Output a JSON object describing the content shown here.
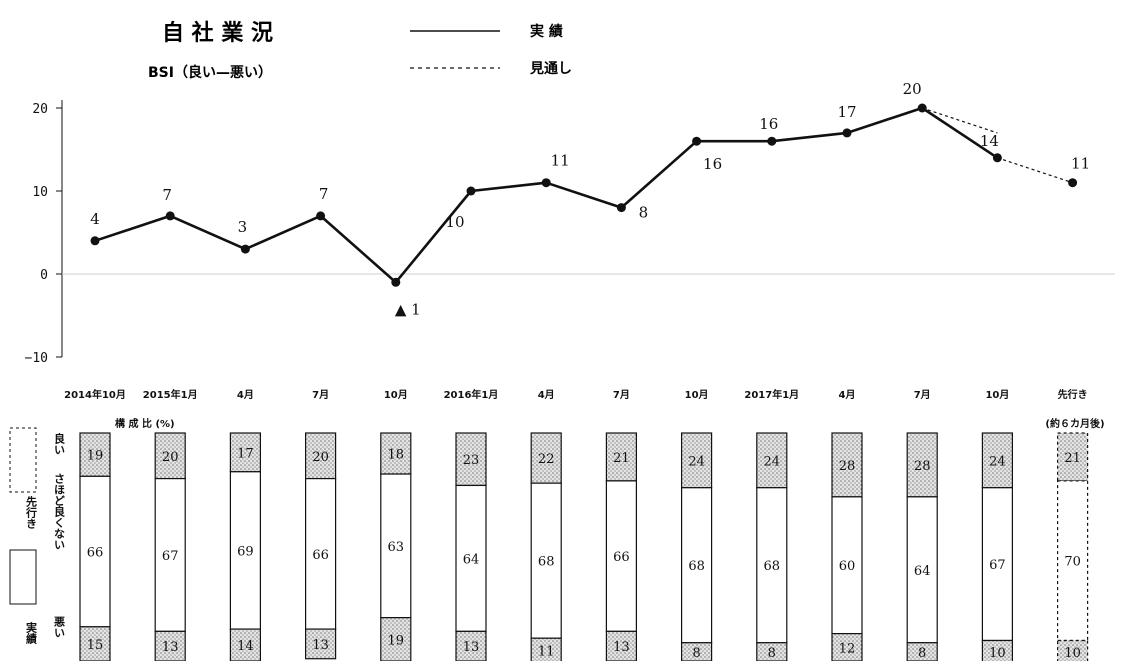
{
  "title": "自 社 業 況",
  "subtitle": "BSI（良い—悪い）",
  "legend": {
    "actual": "実 績",
    "forecast": "見通し"
  },
  "composition_label": "構 成 比 (%)",
  "forecast_note": "(約６カ月後)",
  "side_labels": {
    "good": "良い",
    "neutral": "さほど良くない",
    "bad": "悪い",
    "forecast": "先行き",
    "actual": "実績"
  },
  "colors": {
    "line": "#111111",
    "zero_line": "#cfcfcf",
    "dot_fill": "#dcdcdc"
  },
  "chart_data": [
    {
      "type": "line",
      "title": "自 社 業 況",
      "subtitle": "BSI（良い—悪い）",
      "ylim": [
        -10,
        20
      ],
      "yticks": [
        "20",
        "10",
        "0",
        "−10"
      ],
      "grid": false,
      "legend_position": "top",
      "series": [
        {
          "name": "実 績",
          "style": "solid",
          "x": [
            0,
            1,
            2,
            3,
            4,
            5,
            6,
            7,
            8,
            9,
            10,
            11,
            12
          ],
          "values": [
            4,
            7,
            3,
            7,
            -1,
            10,
            11,
            8,
            16,
            16,
            17,
            20,
            14
          ],
          "labels": [
            "4",
            "7",
            "3",
            "7",
            "▲ 1",
            "10",
            "11",
            "8",
            "16",
            "16",
            "17",
            "20",
            "14"
          ]
        },
        {
          "name": "見通し",
          "style": "dashed",
          "segments": [
            {
              "x": [
                11,
                12
              ],
              "values": [
                20,
                17
              ]
            },
            {
              "x": [
                12,
                13
              ],
              "values": [
                14,
                11
              ]
            }
          ],
          "labels": [
            "11"
          ]
        }
      ]
    },
    {
      "type": "bar",
      "stacked": true,
      "title": "構 成 比 (%)",
      "categories": [
        "2014年10月",
        "2015年1月",
        "4月",
        "7月",
        "10月",
        "2016年1月",
        "4月",
        "7月",
        "10月",
        "2017年1月",
        "4月",
        "7月",
        "10月",
        "先行き"
      ],
      "series": [
        {
          "name": "良い",
          "values": [
            19,
            20,
            17,
            20,
            18,
            23,
            22,
            21,
            24,
            24,
            28,
            28,
            24,
            21
          ]
        },
        {
          "name": "さほど良くない",
          "values": [
            66,
            67,
            69,
            66,
            63,
            64,
            68,
            66,
            68,
            68,
            60,
            64,
            67,
            70
          ]
        },
        {
          "name": "悪い",
          "values": [
            15,
            13,
            14,
            13,
            19,
            13,
            11,
            13,
            8,
            8,
            12,
            8,
            10,
            10
          ]
        }
      ]
    }
  ]
}
